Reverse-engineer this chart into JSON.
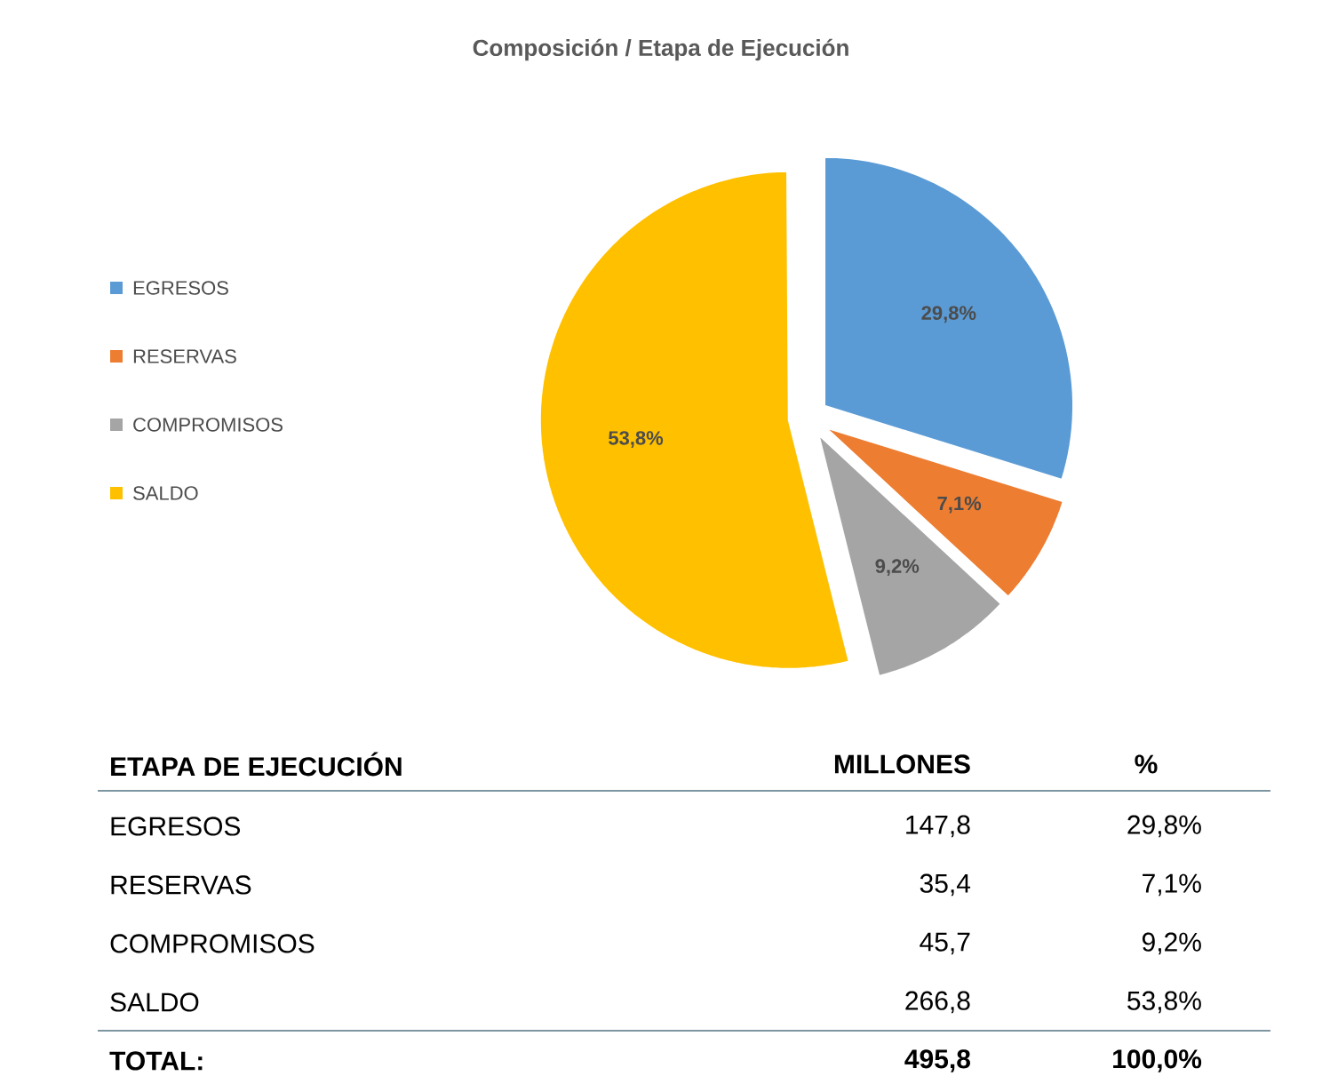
{
  "chart_data": {
    "type": "pie",
    "title": "Composición / Etapa de Ejecución",
    "categories": [
      "EGRESOS",
      "RESERVAS",
      "COMPROMISOS",
      "SALDO"
    ],
    "values": [
      29.8,
      7.1,
      9.2,
      53.8
    ],
    "value_labels": [
      "29,8%",
      "7,1%",
      "9,2%",
      "53,8%"
    ],
    "colors": [
      "#5b9bd5",
      "#ed7d31",
      "#a5a5a5",
      "#ffc000"
    ],
    "legend": "left",
    "annotations": [
      "ETAPA DE EJECUCIÓN",
      "MILLONES",
      "%",
      "147,8",
      "35,4",
      "45,7",
      "266,8",
      "TOTAL:",
      "495,8",
      "100,0%"
    ]
  }
}
